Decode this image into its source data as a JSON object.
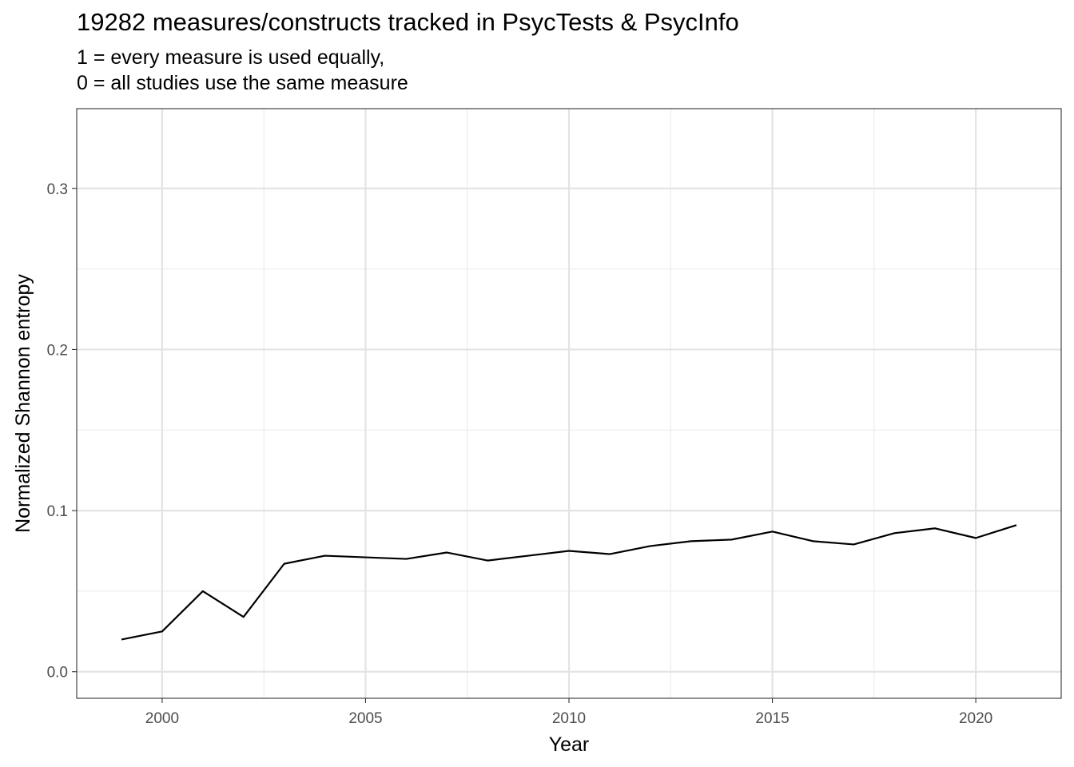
{
  "chart_data": {
    "type": "line",
    "title": "19282 measures/constructs tracked in PsycTests & PsycInfo",
    "subtitle": [
      "1 = every measure is used equally,",
      "0 = all studies use the same measure"
    ],
    "xlabel": "Year",
    "ylabel": "Normalized Shannon entropy",
    "xlim": [
      1997.9,
      2022.1
    ],
    "ylim": [
      -0.0165,
      0.3495
    ],
    "x_ticks": [
      2000,
      2005,
      2010,
      2015,
      2020
    ],
    "x_tick_labels": [
      "2000",
      "2005",
      "2010",
      "2015",
      "2020"
    ],
    "y_ticks": [
      0.0,
      0.1,
      0.2,
      0.3
    ],
    "y_tick_labels": [
      "0.0",
      "0.1",
      "0.2",
      "0.3"
    ],
    "grid": true,
    "series": [
      {
        "color": "#000000",
        "x": [
          1999,
          2000,
          2001,
          2002,
          2003,
          2004,
          2005,
          2006,
          2007,
          2008,
          2009,
          2010,
          2011,
          2012,
          2013,
          2014,
          2015,
          2016,
          2017,
          2018,
          2019,
          2020,
          2021
        ],
        "y": [
          0.02,
          0.025,
          0.05,
          0.034,
          0.067,
          0.072,
          0.071,
          0.07,
          0.074,
          0.069,
          0.072,
          0.075,
          0.073,
          0.078,
          0.081,
          0.082,
          0.087,
          0.081,
          0.079,
          0.086,
          0.089,
          0.083,
          0.091
        ]
      }
    ]
  }
}
